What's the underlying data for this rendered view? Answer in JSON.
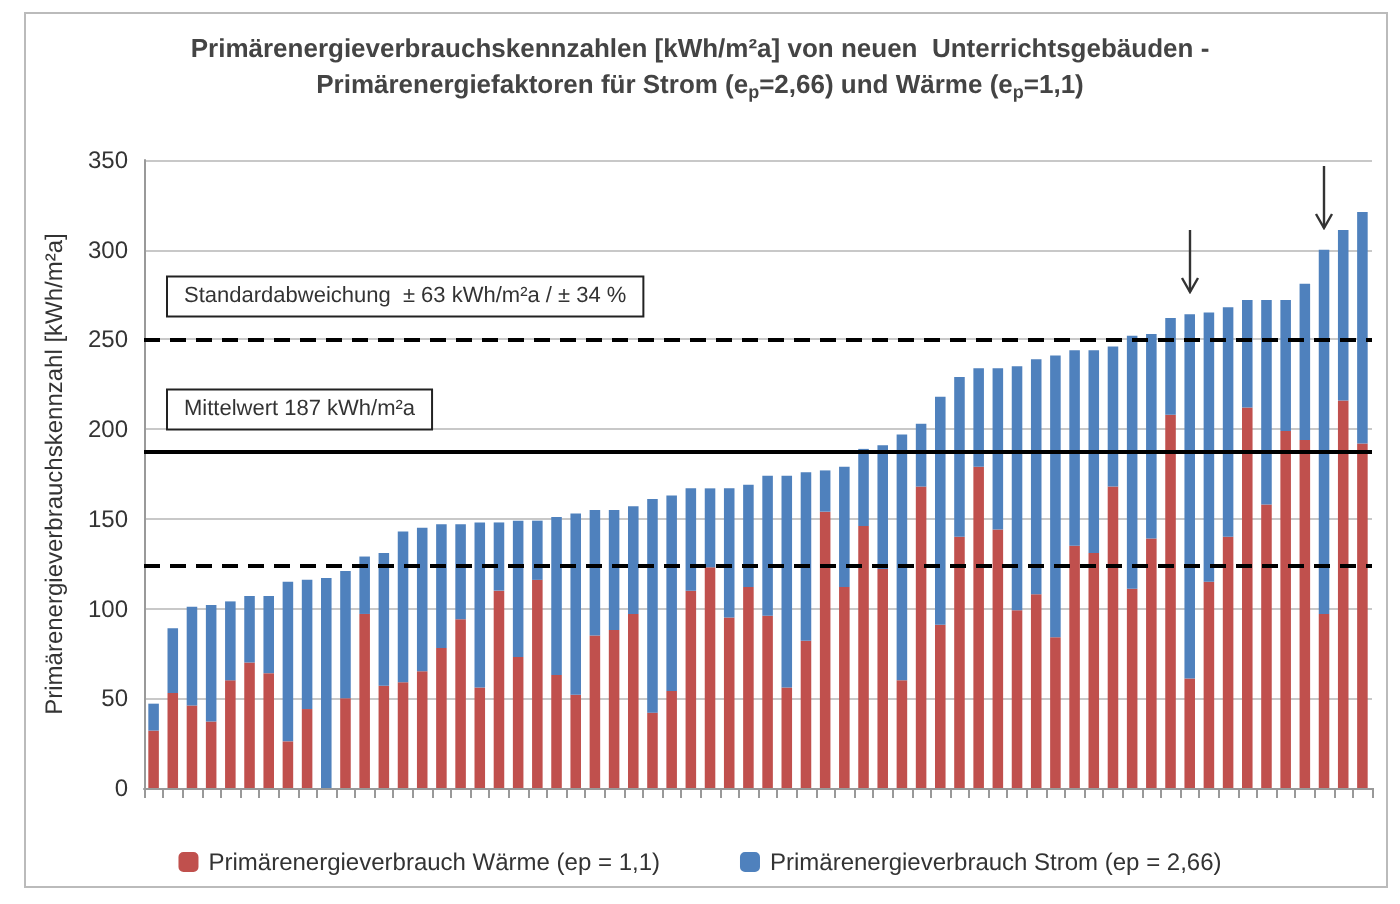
{
  "chart_data": {
    "type": "bar",
    "stacked": true,
    "title": "Primärenergieverbrauchskennzahlen [kWh/m²a] von neuen  Unterrichtsgebäuden -\nPrimärenergiefaktoren für Strom (e$_{p}$=2,66) und Wärme (e$_{p}$=1,1)",
    "ylabel": "Primärenergieverbrauchskennzahl [kWh/m²a]",
    "categories": [
      null,
      null,
      null,
      null,
      null,
      null,
      null,
      null,
      null,
      null,
      null,
      null,
      null,
      null,
      null,
      null,
      null,
      null,
      null,
      null,
      null,
      null,
      null,
      null,
      null,
      null,
      null,
      null,
      null,
      null,
      null,
      null,
      null,
      null,
      null,
      null,
      null,
      null,
      null,
      null,
      null,
      null,
      null,
      null,
      null,
      null,
      null,
      null,
      null,
      null,
      null,
      null,
      null,
      null,
      null,
      null,
      null,
      null,
      null,
      null,
      null,
      null,
      null,
      null
    ],
    "series": [
      {
        "name": "Primärenergieverbrauch Wärme (ep = 1,1)",
        "color": "#c0504d",
        "values": [
          32,
          53,
          46,
          37,
          60,
          70,
          64,
          26,
          44,
          0,
          50,
          97,
          57,
          59,
          65,
          78,
          94,
          56,
          110,
          73,
          116,
          63,
          52,
          85,
          88,
          97,
          42,
          54,
          110,
          123,
          95,
          112,
          96,
          56,
          82,
          154,
          112,
          146,
          122,
          60,
          168,
          91,
          140,
          179,
          144,
          99,
          108,
          84,
          135,
          131,
          168,
          111,
          139,
          208,
          61,
          115,
          140,
          212,
          158,
          199,
          194,
          97,
          216,
          192
        ]
      },
      {
        "name": "Primärenergieverbrauch Strom (ep = 2,66)",
        "color": "#4f81bd",
        "values": [
          15,
          36,
          55,
          65,
          44,
          37,
          43,
          89,
          72,
          117,
          71,
          32,
          74,
          84,
          80,
          69,
          53,
          92,
          38,
          76,
          33,
          88,
          101,
          70,
          67,
          60,
          119,
          109,
          57,
          44,
          72,
          57,
          78,
          118,
          94,
          23,
          67,
          43,
          69,
          137,
          35,
          127,
          89,
          55,
          90,
          136,
          131,
          157,
          109,
          113,
          78,
          141,
          114,
          54,
          203,
          150,
          128,
          60,
          114,
          73,
          87,
          203,
          95,
          129
        ]
      }
    ],
    "ylim": [
      0,
      350
    ],
    "yticks": [
      0,
      50,
      100,
      150,
      200,
      250,
      300,
      350
    ],
    "grid": "y",
    "legend": "bottom",
    "ref_lines": [
      {
        "axis": "y",
        "value": 250,
        "label": "Standardabweichung  ± 63 kWh/m²a / ± 34 %",
        "color": "#000000",
        "line_style": "dashed"
      },
      {
        "axis": "y",
        "value": 187,
        "label": "Mittelwert 187 kWh/m²a",
        "color": "#000000",
        "line_style": "solid"
      },
      {
        "axis": "y",
        "value": 124,
        "label": null,
        "color": "#000000",
        "line_style": "dashed"
      }
    ]
  }
}
